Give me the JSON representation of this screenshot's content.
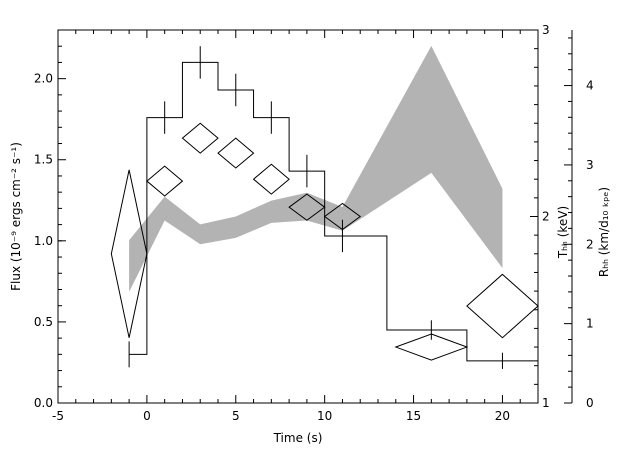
{
  "chart_data": {
    "type": "line",
    "xlabel": "Time (s)",
    "ylabel": "Flux (10⁻⁹ ergs cm⁻² s⁻¹)",
    "y2label": "Tₕₕ (keV)",
    "y3label": "Rₕₕ (km/d₁₀ ₖₚₑ)",
    "xlim": [
      -5,
      22
    ],
    "ylim": [
      0,
      2.3
    ],
    "xticks": [
      "-5",
      "0",
      "5",
      "10",
      "15",
      "20"
    ],
    "yticks": [
      "0.0",
      "0.5",
      "1.0",
      "1.5",
      "2.0"
    ],
    "y2lim": [
      1,
      3
    ],
    "y2ticks": [
      "1",
      "2",
      "3"
    ],
    "y3lim": [
      0,
      4.7
    ],
    "y3ticks": [
      "0",
      "1",
      "2",
      "3",
      "4"
    ],
    "series": [
      {
        "kind": "flux-histogram",
        "bins": [
          {
            "x0": -1,
            "x1": 0,
            "y": 0.3
          },
          {
            "x0": 0,
            "x1": 2,
            "y": 1.76
          },
          {
            "x0": 2,
            "x1": 4,
            "y": 2.1
          },
          {
            "x0": 4,
            "x1": 6,
            "y": 1.93
          },
          {
            "x0": 6,
            "x1": 8,
            "y": 1.76
          },
          {
            "x0": 8,
            "x1": 10,
            "y": 1.43
          },
          {
            "x0": 10,
            "x1": 13.5,
            "y": 1.03
          },
          {
            "x0": 13.5,
            "x1": 18,
            "y": 0.45
          },
          {
            "x0": 18,
            "x1": 22,
            "y": 0.26
          }
        ],
        "errorbars": [
          {
            "x": -1,
            "y": 0.3,
            "err": 0.08
          },
          {
            "x": 1,
            "y": 1.76,
            "err": 0.1
          },
          {
            "x": 3,
            "y": 2.1,
            "err": 0.1
          },
          {
            "x": 5,
            "y": 1.93,
            "err": 0.1
          },
          {
            "x": 7,
            "y": 1.76,
            "err": 0.1
          },
          {
            "x": 9,
            "y": 1.43,
            "err": 0.1
          },
          {
            "x": 11,
            "y": 1.03,
            "err": 0.1
          },
          {
            "x": 16,
            "y": 0.45,
            "err": 0.06
          },
          {
            "x": 20,
            "y": 0.26,
            "err": 0.05
          }
        ]
      },
      {
        "kind": "temperature-diamonds",
        "points": [
          {
            "x": -1,
            "y": 1.8,
            "dx": 1.0,
            "dy": 0.45
          },
          {
            "x": 1,
            "y": 2.19,
            "dx": 1.0,
            "dy": 0.08
          },
          {
            "x": 3,
            "y": 2.42,
            "dx": 1.0,
            "dy": 0.08
          },
          {
            "x": 5,
            "y": 2.34,
            "dx": 1.0,
            "dy": 0.08
          },
          {
            "x": 7,
            "y": 2.2,
            "dx": 1.0,
            "dy": 0.08
          },
          {
            "x": 9,
            "y": 2.05,
            "dx": 1.0,
            "dy": 0.07
          },
          {
            "x": 11,
            "y": 2.0,
            "dx": 1.0,
            "dy": 0.07
          },
          {
            "x": 16,
            "y": 1.3,
            "dx": 2.0,
            "dy": 0.07
          },
          {
            "x": 20,
            "y": 1.52,
            "dx": 2.0,
            "dy": 0.17
          }
        ]
      },
      {
        "kind": "radius-band",
        "points": [
          {
            "x": -1,
            "low": 1.4,
            "high": 2.05
          },
          {
            "x": 1,
            "low": 2.3,
            "high": 2.6
          },
          {
            "x": 3,
            "low": 2.0,
            "high": 2.25
          },
          {
            "x": 5,
            "low": 2.08,
            "high": 2.35
          },
          {
            "x": 7,
            "low": 2.27,
            "high": 2.55
          },
          {
            "x": 9,
            "low": 2.3,
            "high": 2.65
          },
          {
            "x": 11,
            "low": 2.17,
            "high": 2.47
          },
          {
            "x": 16,
            "low": 2.9,
            "high": 4.5
          },
          {
            "x": 20,
            "low": 1.7,
            "high": 2.7
          }
        ]
      }
    ],
    "colors": {
      "band": "#b3b3b3",
      "line": "#000000",
      "background": "#ffffff"
    }
  }
}
